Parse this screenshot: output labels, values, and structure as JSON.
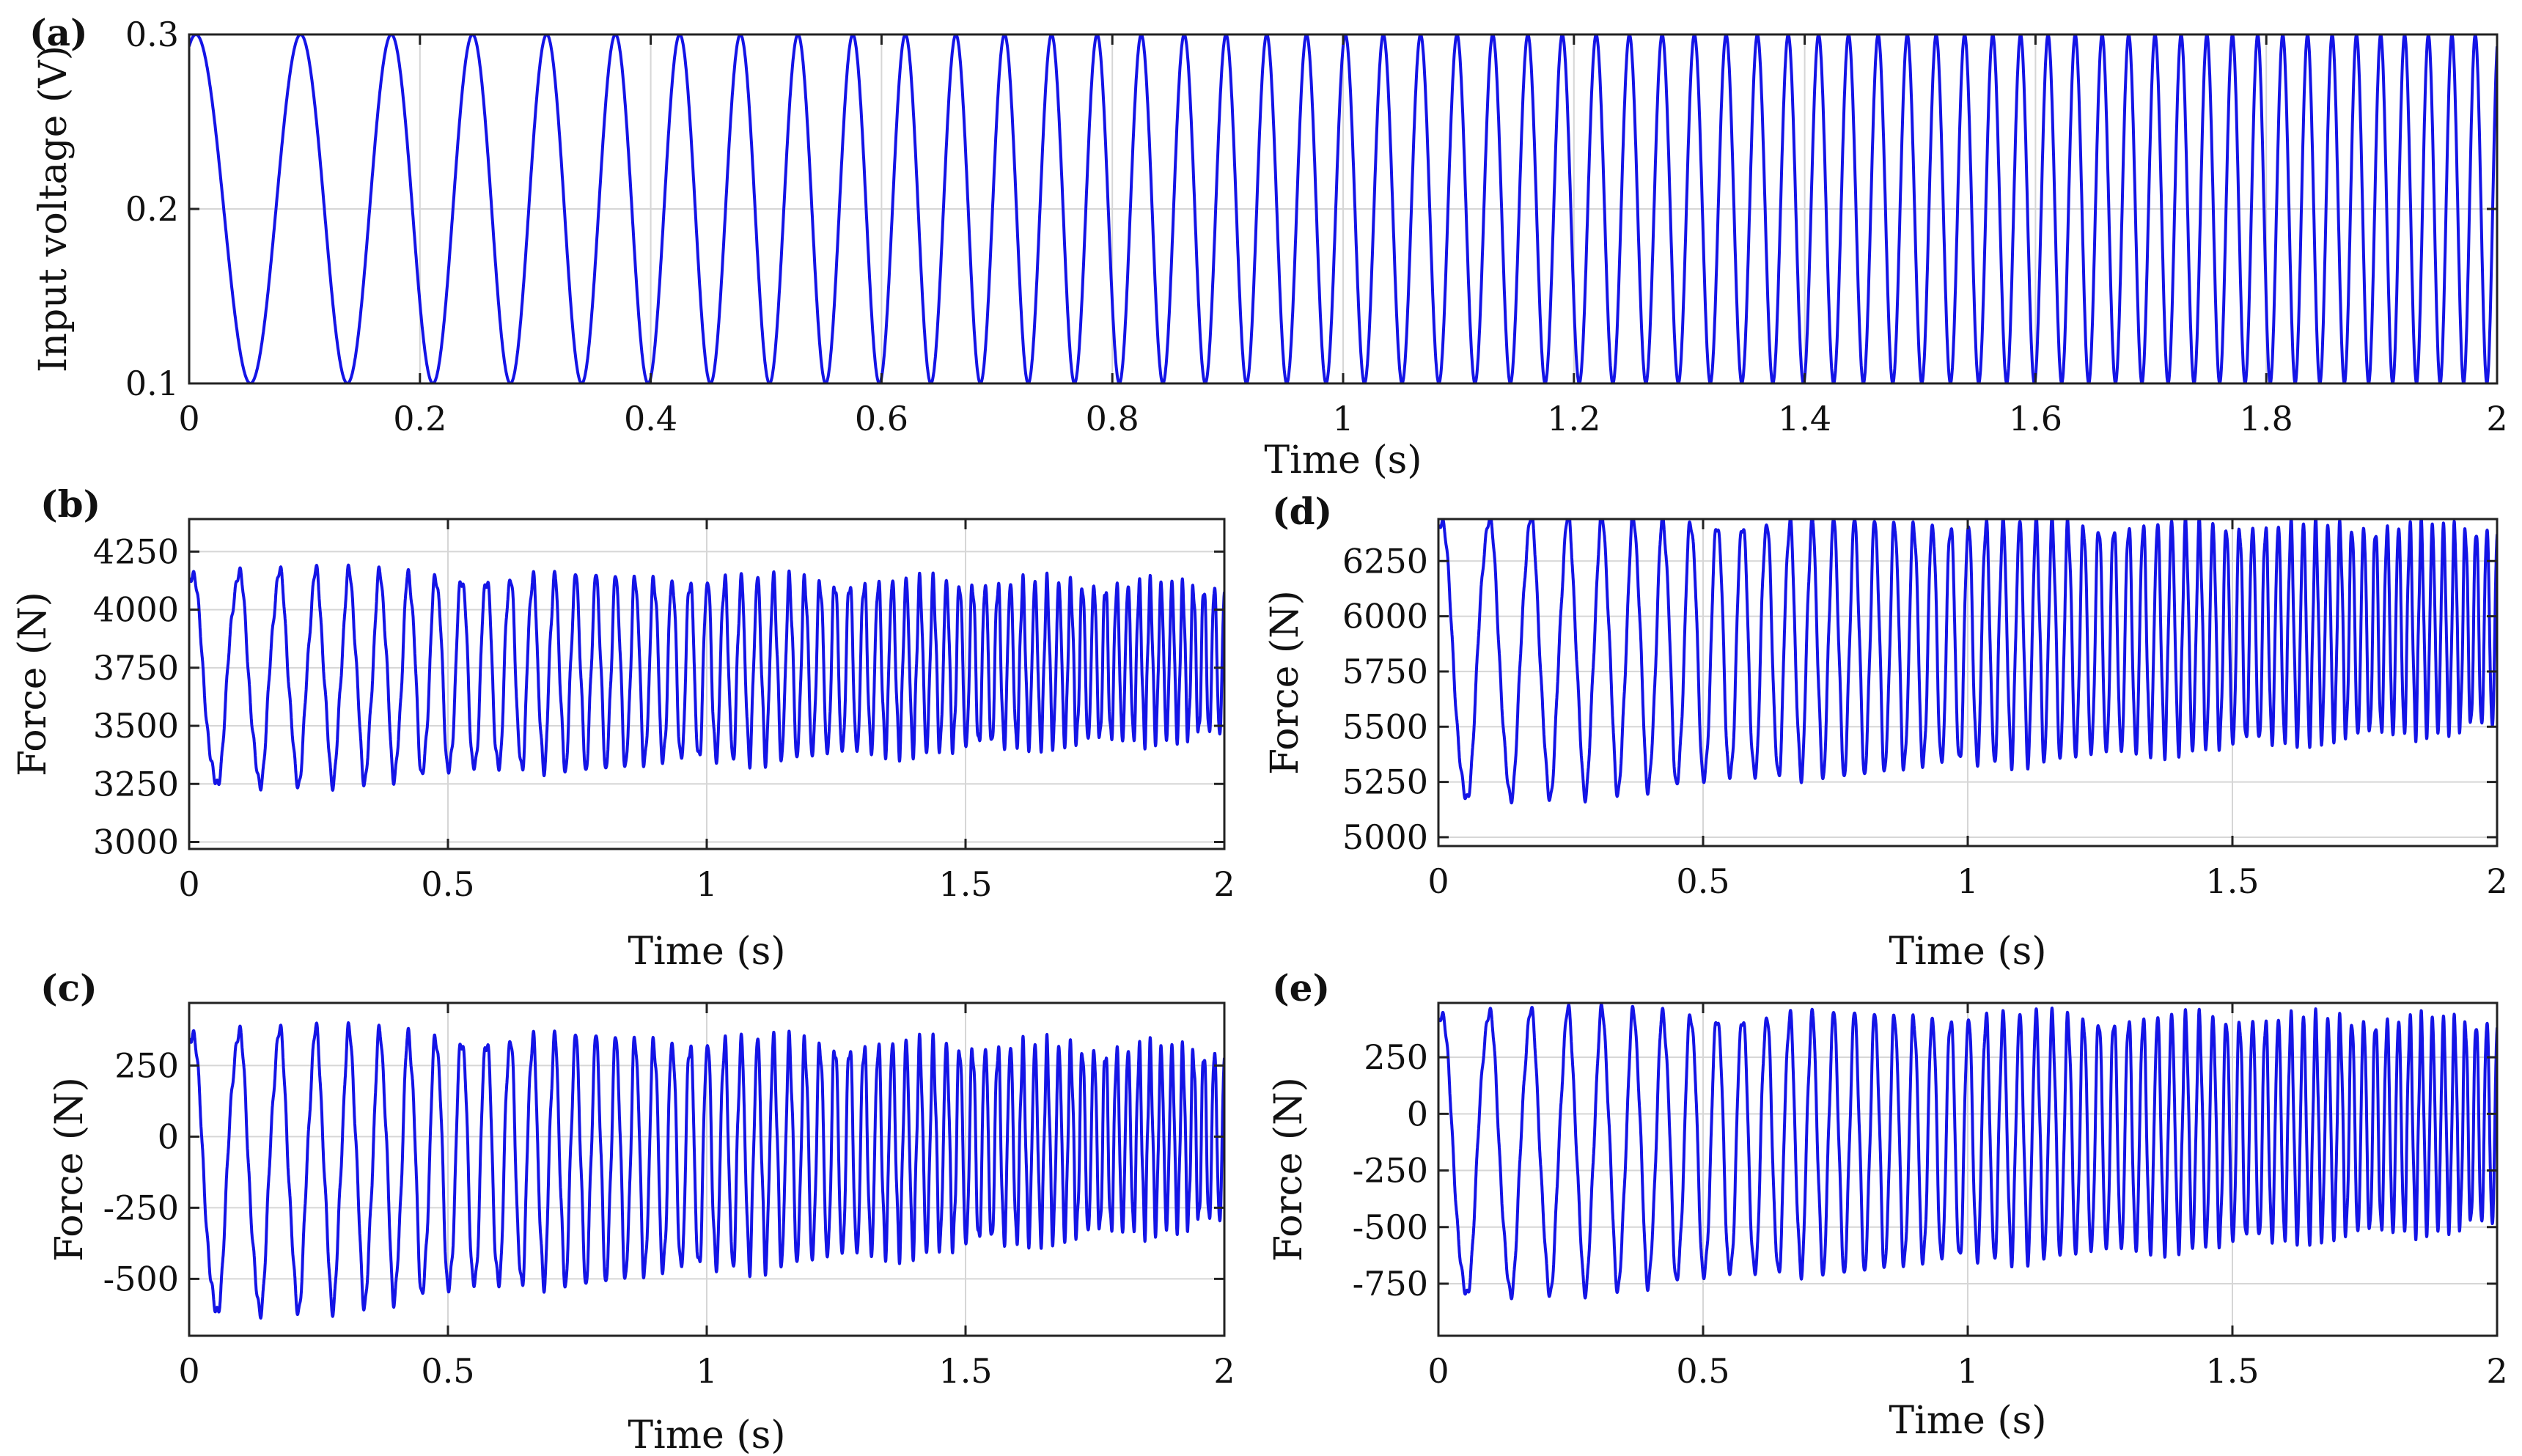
{
  "series_color": "#1414e6",
  "chart_data": [
    {
      "id": "a",
      "type": "line",
      "panel_label": "(a)",
      "xlabel": "Time (s)",
      "ylabel": "Input voltage (V)",
      "xlim": [
        0,
        2
      ],
      "ylim": [
        0.1,
        0.3
      ],
      "xticks": [
        0,
        0.2,
        0.4,
        0.6,
        0.8,
        1,
        1.2,
        1.4,
        1.6,
        1.8,
        2
      ],
      "yticks": [
        0.1,
        0.2,
        0.3
      ],
      "series": [
        {
          "name": "Input voltage",
          "kind": "chirp",
          "mean": 0.2,
          "amplitude": 0.1,
          "f0": 10,
          "rate": 20,
          "phase": 1.2
        }
      ]
    },
    {
      "id": "b",
      "type": "line",
      "panel_label": "(b)",
      "xlabel": "Time (s)",
      "ylabel": "Force (N)",
      "xlim": [
        0,
        2
      ],
      "ylim": [
        2970,
        4390
      ],
      "xticks": [
        0,
        0.5,
        1,
        1.5,
        2
      ],
      "yticks": [
        3000,
        3250,
        3500,
        3750,
        4000,
        4250
      ],
      "series": [
        {
          "name": "Force",
          "kind": "chirp",
          "mean": 3700,
          "amplitude": 460,
          "amplitude_end": 320,
          "mean_end": 3780,
          "f0": 10,
          "rate": 20,
          "phase": 1.3,
          "ripple": 30
        }
      ]
    },
    {
      "id": "c",
      "type": "line",
      "panel_label": "(c)",
      "xlabel": "Time (s)",
      "ylabel": "Force (N)",
      "xlim": [
        0,
        2
      ],
      "ylim": [
        -700,
        470
      ],
      "xticks": [
        0,
        0.5,
        1,
        1.5,
        2
      ],
      "yticks": [
        -500,
        -250,
        0,
        250
      ],
      "series": [
        {
          "name": "Force",
          "kind": "chirp",
          "mean": -130,
          "amplitude": 500,
          "amplitude_end": 300,
          "mean_end": 0,
          "f0": 10,
          "rate": 20,
          "phase": 1.3,
          "ripple": 30
        }
      ]
    },
    {
      "id": "d",
      "type": "line",
      "panel_label": "(d)",
      "xlabel": "Time (s)",
      "ylabel": "Force (N)",
      "xlim": [
        0,
        2
      ],
      "ylim": [
        4960,
        6440
      ],
      "xticks": [
        0,
        0.5,
        1,
        1.5,
        2
      ],
      "yticks": [
        5000,
        5250,
        5500,
        5750,
        6000,
        6250
      ],
      "series": [
        {
          "name": "Force",
          "kind": "chirp",
          "mean": 5800,
          "amplitude": 640,
          "amplitude_end": 450,
          "mean_end": 5950,
          "f0": 10,
          "rate": 20,
          "phase": 1.3,
          "ripple": 30
        }
      ]
    },
    {
      "id": "e",
      "type": "line",
      "panel_label": "(e)",
      "xlabel": "Time (s)",
      "ylabel": "Force (N)",
      "xlim": [
        0,
        2
      ],
      "ylim": [
        -980,
        490
      ],
      "xticks": [
        0,
        0.5,
        1,
        1.5,
        2
      ],
      "yticks": [
        -750,
        -500,
        -250,
        0,
        250
      ],
      "series": [
        {
          "name": "Force",
          "kind": "chirp",
          "mean": -180,
          "amplitude": 630,
          "amplitude_end": 450,
          "mean_end": -40,
          "f0": 10,
          "rate": 20,
          "phase": 1.3,
          "ripple": 30
        }
      ]
    }
  ]
}
